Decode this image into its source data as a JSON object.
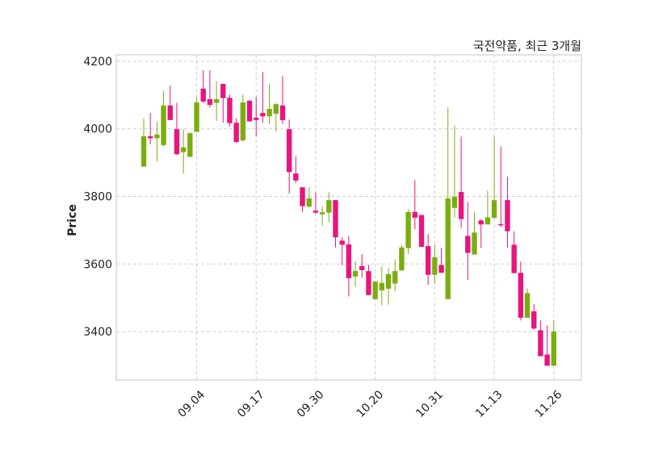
{
  "chart_data": {
    "type": "candlestick",
    "title": "국전약품, 최근 3개월",
    "xlabel": "",
    "ylabel": "Price",
    "ylim": [
      3257,
      4219
    ],
    "yticks": [
      3400,
      3600,
      3800,
      4000,
      4200
    ],
    "xticks": [
      {
        "index": 8,
        "label": "09.04"
      },
      {
        "index": 17,
        "label": "09.17"
      },
      {
        "index": 26,
        "label": "09.30"
      },
      {
        "index": 35,
        "label": "10.20"
      },
      {
        "index": 44,
        "label": "10.31"
      },
      {
        "index": 53,
        "label": "11.13"
      },
      {
        "index": 62,
        "label": "11.26"
      }
    ],
    "grid": true,
    "colors": {
      "up": "#7cad10",
      "down": "#e8157d"
    },
    "ohlc_fields": [
      "open",
      "high",
      "low",
      "close"
    ],
    "candles": [
      [
        3888,
        4031,
        3888,
        3978
      ],
      [
        3978,
        4047,
        3954,
        3972
      ],
      [
        3972,
        4022,
        3904,
        3983
      ],
      [
        3952,
        4113,
        3949,
        4069
      ],
      [
        4069,
        4128,
        4026,
        4026
      ],
      [
        3999,
        4077,
        3922,
        3925
      ],
      [
        3931,
        3998,
        3868,
        3945
      ],
      [
        3917,
        3990,
        3917,
        3987
      ],
      [
        3991,
        4095,
        3991,
        4078
      ],
      [
        4119,
        4173,
        4077,
        4081
      ],
      [
        4088,
        4173,
        4063,
        4071
      ],
      [
        4077,
        4141,
        4023,
        4088
      ],
      [
        4133,
        4133,
        4018,
        4091
      ],
      [
        4092,
        4101,
        4007,
        4017
      ],
      [
        4018,
        4031,
        3958,
        3961
      ],
      [
        3966,
        4101,
        3962,
        4078
      ],
      [
        4083,
        4086,
        4022,
        4022
      ],
      [
        4033,
        4095,
        3977,
        4026
      ],
      [
        4047,
        4168,
        4018,
        4037
      ],
      [
        4037,
        4132,
        4014,
        4059
      ],
      [
        4045,
        4077,
        3992,
        4073
      ],
      [
        4069,
        4156,
        4014,
        4026
      ],
      [
        3999,
        4027,
        3808,
        3872
      ],
      [
        3868,
        3918,
        3840,
        3847
      ],
      [
        3827,
        3827,
        3753,
        3771
      ],
      [
        3770,
        3827,
        3767,
        3794
      ],
      [
        3758,
        3812,
        3749,
        3752
      ],
      [
        3747,
        3771,
        3713,
        3753
      ],
      [
        3752,
        3812,
        3724,
        3789
      ],
      [
        3789,
        3789,
        3649,
        3679
      ],
      [
        3669,
        3679,
        3597,
        3657
      ],
      [
        3658,
        3683,
        3504,
        3558
      ],
      [
        3563,
        3607,
        3532,
        3579
      ],
      [
        3594,
        3629,
        3560,
        3582
      ],
      [
        3579,
        3597,
        3508,
        3508
      ],
      [
        3496,
        3548,
        3496,
        3548
      ],
      [
        3522,
        3593,
        3478,
        3544
      ],
      [
        3527,
        3588,
        3480,
        3570
      ],
      [
        3542,
        3613,
        3519,
        3579
      ],
      [
        3581,
        3657,
        3579,
        3649
      ],
      [
        3647,
        3763,
        3629,
        3754
      ],
      [
        3754,
        3848,
        3703,
        3737
      ],
      [
        3745,
        3745,
        3649,
        3651
      ],
      [
        3653,
        3688,
        3538,
        3568
      ],
      [
        3568,
        3657,
        3542,
        3620
      ],
      [
        3597,
        3648,
        3574,
        3574
      ],
      [
        3496,
        4063,
        3496,
        3794
      ],
      [
        3766,
        4009,
        3738,
        3799
      ],
      [
        3813,
        3977,
        3707,
        3733
      ],
      [
        3683,
        3783,
        3553,
        3633
      ],
      [
        3628,
        3753,
        3628,
        3693
      ],
      [
        3729,
        3733,
        3648,
        3717
      ],
      [
        3717,
        3817,
        3717,
        3738
      ],
      [
        3737,
        3977,
        3733,
        3789
      ],
      [
        3718,
        3948,
        3709,
        3716
      ],
      [
        3789,
        3858,
        3648,
        3697
      ],
      [
        3657,
        3697,
        3573,
        3573
      ],
      [
        3574,
        3607,
        3433,
        3441
      ],
      [
        3441,
        3528,
        3441,
        3514
      ],
      [
        3460,
        3482,
        3406,
        3409
      ],
      [
        3404,
        3433,
        3327,
        3327
      ],
      [
        3332,
        3418,
        3299,
        3299
      ],
      [
        3299,
        3433,
        3299,
        3400
      ]
    ]
  }
}
